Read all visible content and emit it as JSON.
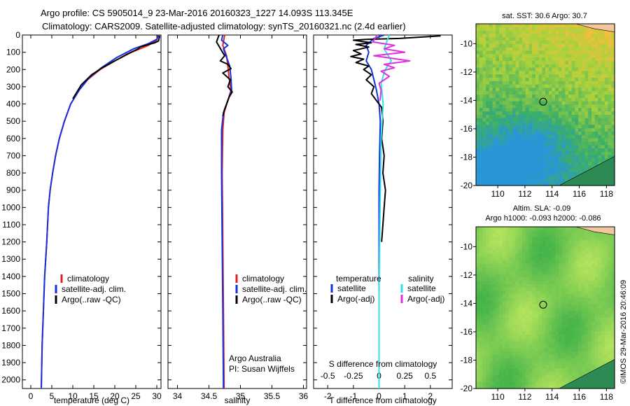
{
  "header": {
    "line1": "Argo profile: CS 5905014_9 23-Mar-2016 20160323_1227 14.093S 113.345E",
    "line2": "Climatology: CARS2009. Satellite-adjusted climatology: synTS_20160321.nc (2.4d earlier)"
  },
  "credit": "©IMOS 29-Mar-2016 20:46:09",
  "colors": {
    "clim": "#e02020",
    "sat": "#1530e0",
    "argo": "#000000",
    "sat_s": "#30e0e8",
    "argo_s": "#e030e0",
    "land": "#f2c7a0"
  },
  "chart_data": [
    {
      "type": "line",
      "id": "temperature",
      "xlabel": "temperature (deg C)",
      "ylabel": "",
      "xlim": [
        -2,
        31
      ],
      "ylim": [
        2050,
        0
      ],
      "xticks": [
        0,
        5,
        10,
        15,
        20,
        25,
        30
      ],
      "yticks": [
        0,
        100,
        200,
        300,
        400,
        500,
        600,
        700,
        800,
        900,
        1000,
        1100,
        1200,
        1300,
        1400,
        1500,
        1600,
        1700,
        1800,
        1900,
        2000
      ],
      "legend": [
        "climatology",
        "satellite-adj. clim.",
        "Argo(..raw -QC)"
      ],
      "series": [
        {
          "name": "climatology",
          "color": "#e02020",
          "points": [
            [
              30.3,
              0
            ],
            [
              30,
              30
            ],
            [
              28,
              60
            ],
            [
              24,
              100
            ],
            [
              20,
              150
            ],
            [
              16.5,
              200
            ],
            [
              13.5,
              260
            ],
            [
              11.5,
              320
            ],
            [
              9.5,
              400
            ],
            [
              8,
              500
            ],
            [
              6.8,
              600
            ],
            [
              5.9,
              700
            ],
            [
              5.2,
              800
            ],
            [
              4.6,
              900
            ],
            [
              4.2,
              1000
            ],
            [
              3.8,
              1200
            ],
            [
              3.3,
              1400
            ],
            [
              3,
              1600
            ],
            [
              2.7,
              1800
            ],
            [
              2.5,
              2050
            ]
          ]
        },
        {
          "name": "satellite-adj. clim.",
          "color": "#1530e0",
          "points": [
            [
              30.5,
              0
            ],
            [
              30,
              25
            ],
            [
              28,
              50
            ],
            [
              24.5,
              80
            ],
            [
              20.5,
              130
            ],
            [
              16.8,
              190
            ],
            [
              13.8,
              250
            ],
            [
              11.5,
              320
            ],
            [
              9.5,
              400
            ],
            [
              8,
              500
            ],
            [
              6.8,
              600
            ],
            [
              5.9,
              700
            ],
            [
              5.2,
              800
            ],
            [
              4.6,
              900
            ],
            [
              4.2,
              1000
            ],
            [
              3.8,
              1200
            ],
            [
              3.3,
              1400
            ],
            [
              3,
              1600
            ],
            [
              2.7,
              1800
            ],
            [
              2.5,
              2050
            ]
          ]
        },
        {
          "name": "Argo(..raw -QC)",
          "color": "#000000",
          "points": [
            [
              30.7,
              5
            ],
            [
              30.4,
              35
            ],
            [
              29.5,
              45
            ],
            [
              28,
              55
            ],
            [
              26,
              70
            ],
            [
              25.6,
              80
            ],
            [
              23,
              110
            ],
            [
              20,
              150
            ],
            [
              17,
              190
            ],
            [
              14.5,
              230
            ],
            [
              12,
              290
            ],
            [
              10,
              370
            ]
          ]
        }
      ]
    },
    {
      "type": "line",
      "id": "salinity",
      "xlabel": "salinity",
      "ylabel": "",
      "xlim": [
        33.85,
        36.05
      ],
      "ylim": [
        2050,
        0
      ],
      "xticks": [
        34,
        34.5,
        35,
        35.5,
        36
      ],
      "legend": [
        "climatology",
        "satellite-adj. clim.",
        "Argo(..raw -QC)"
      ],
      "annotation": [
        "Argo Australia",
        "PI: Susan Wijffels"
      ],
      "series": [
        {
          "name": "climatology",
          "color": "#e02020",
          "points": [
            [
              34.75,
              0
            ],
            [
              34.72,
              60
            ],
            [
              34.78,
              120
            ],
            [
              34.8,
              180
            ],
            [
              34.82,
              250
            ],
            [
              34.85,
              320
            ],
            [
              34.8,
              380
            ],
            [
              34.74,
              450
            ],
            [
              34.72,
              550
            ],
            [
              34.71,
              800
            ],
            [
              34.72,
              1200
            ],
            [
              34.73,
              1600
            ],
            [
              34.74,
              2050
            ]
          ]
        },
        {
          "name": "satellite-adj. clim.",
          "color": "#1530e0",
          "points": [
            [
              34.72,
              0
            ],
            [
              34.7,
              30
            ],
            [
              34.8,
              60
            ],
            [
              34.73,
              80
            ],
            [
              34.78,
              130
            ],
            [
              34.83,
              180
            ],
            [
              34.85,
              250
            ],
            [
              34.86,
              320
            ],
            [
              34.8,
              380
            ],
            [
              34.73,
              450
            ],
            [
              34.7,
              550
            ],
            [
              34.7,
              800
            ],
            [
              34.71,
              1200
            ],
            [
              34.72,
              1600
            ],
            [
              34.73,
              2050
            ]
          ]
        },
        {
          "name": "Argo(..raw -QC)",
          "color": "#000000",
          "points": [
            [
              34.66,
              0
            ],
            [
              34.62,
              40
            ],
            [
              34.7,
              90
            ],
            [
              34.75,
              120
            ],
            [
              34.68,
              150
            ],
            [
              34.8,
              170
            ],
            [
              34.85,
              195
            ],
            [
              34.72,
              220
            ],
            [
              34.84,
              260
            ],
            [
              34.8,
              300
            ],
            [
              34.87,
              330
            ],
            [
              34.82,
              360
            ],
            [
              34.79,
              390
            ],
            [
              34.75,
              430
            ],
            [
              34.72,
              470
            ]
          ]
        }
      ]
    },
    {
      "type": "line",
      "id": "differences",
      "xlabel": "T difference from climatology",
      "xlabel2": "S difference from climatology",
      "xlim": [
        -2.55,
        2.85
      ],
      "ylim": [
        2050,
        0
      ],
      "xticks": [
        -2,
        -1,
        0,
        1,
        2
      ],
      "x2ticks": [
        -0.5,
        -0.25,
        0,
        0.25,
        0.5
      ],
      "legend_titles": [
        "temperature",
        "salinity"
      ],
      "legend": [
        "satellite",
        "Argo(-adj)",
        "satellite",
        "Argo(-adj)"
      ],
      "series": [
        {
          "name": "temperature satellite",
          "color": "#1530e0",
          "points": [
            [
              0.2,
              0
            ],
            [
              -0.2,
              20
            ],
            [
              -0.5,
              60
            ],
            [
              -0.4,
              100
            ],
            [
              -0.5,
              150
            ],
            [
              -0.3,
              200
            ],
            [
              -0.2,
              260
            ],
            [
              -0.1,
              320
            ],
            [
              0,
              400
            ],
            [
              0.05,
              500
            ],
            [
              0.02,
              700
            ],
            [
              0,
              900
            ],
            [
              0,
              2050
            ]
          ]
        },
        {
          "name": "temperature Argo(-adj)",
          "color": "#000000",
          "points": [
            [
              2.4,
              5
            ],
            [
              0.8,
              20
            ],
            [
              -0.5,
              25
            ],
            [
              -1,
              30
            ],
            [
              -0.3,
              45
            ],
            [
              -0.9,
              55
            ],
            [
              -0.4,
              70
            ],
            [
              -1,
              90
            ],
            [
              -0.7,
              110
            ],
            [
              -1.1,
              125
            ],
            [
              -0.6,
              140
            ],
            [
              -0.9,
              160
            ],
            [
              -0.4,
              180
            ],
            [
              -0.6,
              200
            ],
            [
              -0.3,
              230
            ],
            [
              -0.5,
              260
            ],
            [
              -0.2,
              300
            ],
            [
              -0.3,
              340
            ],
            [
              -0.1,
              380
            ],
            [
              0.1,
              420
            ],
            [
              0.15,
              500
            ],
            [
              0.1,
              600
            ],
            [
              0.2,
              700
            ],
            [
              0.15,
              800
            ],
            [
              0.25,
              900
            ],
            [
              0.2,
              1000
            ],
            [
              0.15,
              1100
            ],
            [
              0.1,
              1200
            ]
          ]
        },
        {
          "name": "salinity satellite",
          "color": "#30e0e8",
          "points": [
            [
              0.1,
              0
            ],
            [
              0.05,
              80
            ],
            [
              0.12,
              150
            ],
            [
              0.06,
              200
            ],
            [
              0.02,
              280
            ],
            [
              0.04,
              400
            ],
            [
              0.02,
              600
            ],
            [
              0.01,
              1000
            ],
            [
              0,
              1500
            ],
            [
              0,
              2050
            ]
          ]
        },
        {
          "name": "salinity Argo(-adj)",
          "color": "#e030e0",
          "points": [
            [
              -0.02,
              0
            ],
            [
              -0.06,
              40
            ],
            [
              0.15,
              60
            ],
            [
              0.05,
              80
            ],
            [
              0.25,
              100
            ],
            [
              -0.05,
              120
            ],
            [
              0.3,
              150
            ],
            [
              0.05,
              170
            ],
            [
              0.15,
              190
            ],
            [
              0.02,
              210
            ],
            [
              0.1,
              240
            ],
            [
              0,
              280
            ],
            [
              0.02,
              320
            ],
            [
              0.01,
              380
            ]
          ]
        }
      ]
    },
    {
      "type": "heatmap",
      "id": "sst-map",
      "title": "sat. SST: 30.6  Argo: 30.7",
      "xlim": [
        108.4,
        118.6
      ],
      "ylim": [
        -20,
        -8.6
      ],
      "xticks": [
        110,
        112,
        114,
        116,
        118
      ],
      "yticks": [
        -10,
        -12,
        -14,
        -16,
        -18,
        -20
      ],
      "argo_position": [
        113.345,
        -14.093
      ]
    },
    {
      "type": "heatmap",
      "id": "sla-map",
      "title": "Altim. SLA: -0.09",
      "subtitle": "Argo h1000: -0.093  h2000: -0.086",
      "xlim": [
        108.4,
        118.6
      ],
      "ylim": [
        -20,
        -8.6
      ],
      "xticks": [
        110,
        112,
        114,
        116,
        118
      ],
      "yticks": [
        -10,
        -12,
        -14,
        -16,
        -18,
        -20
      ],
      "argo_position": [
        113.345,
        -14.093
      ]
    }
  ]
}
